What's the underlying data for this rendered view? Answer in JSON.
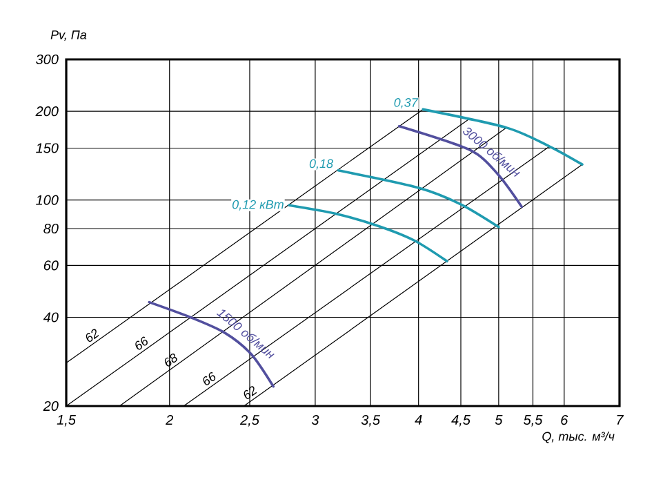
{
  "chart_data": {
    "type": "line",
    "xlabel": "Q, тыс. м³/ч",
    "ylabel": "Pv, Па",
    "log": "xy",
    "grid": true,
    "xlim": [
      1.5,
      7
    ],
    "ylim": [
      20,
      300
    ],
    "xticks": [
      {
        "value": 1.5,
        "label": "1,5"
      },
      2,
      {
        "value": 2.5,
        "label": "2,5"
      },
      3,
      {
        "value": 3.5,
        "label": "3,5"
      },
      4,
      {
        "value": 4.5,
        "label": "4,5"
      },
      5,
      {
        "value": 5.5,
        "label": "5,5"
      },
      6,
      7
    ],
    "yticks": [
      20,
      40,
      60,
      80,
      100,
      150,
      200,
      300
    ],
    "series": [
      {
        "name": "62",
        "color": "#000000",
        "x": [
          1.5,
          4.05
        ],
        "values": [
          28,
          203
        ]
      },
      {
        "name": "66",
        "color": "#000000",
        "x": [
          1.5,
          4.6
        ],
        "values": [
          20,
          188
        ]
      },
      {
        "name": "68",
        "color": "#000000",
        "x": [
          1.74,
          5.11
        ],
        "values": [
          20,
          176
        ]
      },
      {
        "name": "66",
        "color": "#000000",
        "x": [
          2.08,
          5.76
        ],
        "values": [
          20,
          152
        ]
      },
      {
        "name": "62",
        "color": "#000000",
        "x": [
          2.46,
          6.31
        ],
        "values": [
          20,
          132
        ]
      },
      {
        "name": "0,12 кВт",
        "color": "#1f9bb0",
        "x": [
          2.79,
          3.17,
          3.56,
          3.95,
          4.33
        ],
        "values": [
          96,
          90,
          82,
          73,
          62
        ]
      },
      {
        "name": "0,18",
        "color": "#1f9bb0",
        "x": [
          3.2,
          4.0,
          4.49,
          5.0
        ],
        "values": [
          126,
          110,
          97,
          81
        ]
      },
      {
        "name": "0,37",
        "color": "#1f9bb0",
        "x": [
          4.05,
          5.11,
          5.76,
          6.31
        ],
        "values": [
          203,
          176,
          152,
          132
        ]
      },
      {
        "name": "3000 об/мин",
        "color": "#524f9e",
        "x": [
          3.79,
          4.61,
          4.98,
          5.33
        ],
        "values": [
          178,
          148,
          123,
          95
        ]
      },
      {
        "name": "1500 об/мин",
        "color": "#524f9e",
        "x": [
          1.89,
          2.12,
          2.33,
          2.51,
          2.67
        ],
        "values": [
          45,
          40,
          35.5,
          30,
          23.3
        ]
      }
    ]
  }
}
